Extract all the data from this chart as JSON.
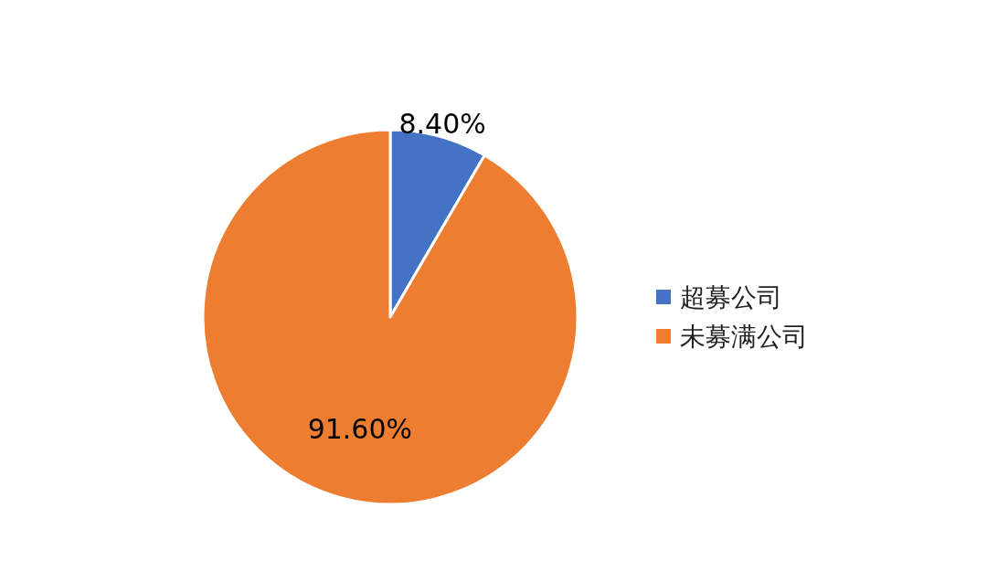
{
  "chart_data": {
    "type": "pie",
    "categories": [
      "超募公司",
      "未募满公司"
    ],
    "values": [
      8.4,
      91.6
    ],
    "colors": [
      "#4472c4",
      "#ed7d31"
    ],
    "value_labels": [
      "8.40%",
      "91.60%"
    ],
    "legend": "right"
  }
}
